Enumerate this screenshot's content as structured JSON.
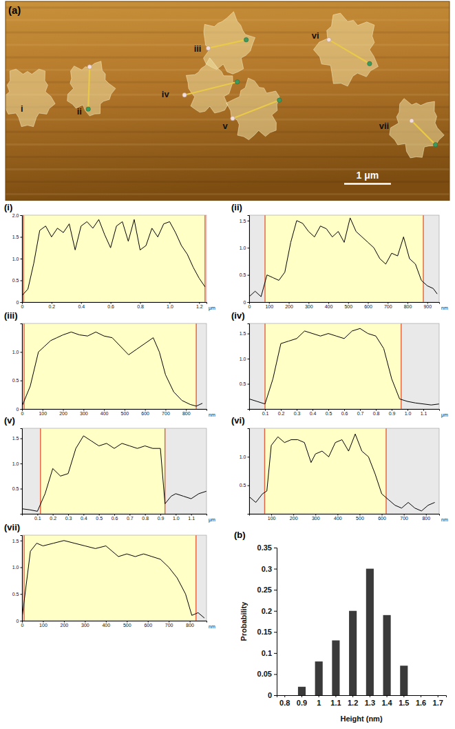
{
  "chart_data": [
    {
      "type": "image",
      "title": "(a)",
      "xlim": [
        0,
        9.5
      ],
      "ylim": [
        0,
        4.25
      ],
      "tick_labels": false,
      "annotations": [
        {
          "text": "i",
          "x": 0.35,
          "y": 2.3
        },
        {
          "text": "ii",
          "x": 1.58,
          "y": 2.36
        },
        {
          "text": "iii",
          "x": 4.11,
          "y": 1.03
        },
        {
          "text": "iv",
          "x": 3.42,
          "y": 2.0
        },
        {
          "text": "v",
          "x": 4.7,
          "y": 2.67
        },
        {
          "text": "vi",
          "x": 6.63,
          "y": 0.74
        },
        {
          "text": "vii",
          "x": 8.1,
          "y": 2.67
        }
      ],
      "profile_lines": [
        {
          "x": [
            1.8,
            1.77
          ],
          "y": [
            1.4,
            2.3
          ]
        },
        {
          "x": [
            4.34,
            5.15
          ],
          "y": [
            1.0,
            0.82
          ]
        },
        {
          "x": [
            3.83,
            4.96
          ],
          "y": [
            2.0,
            1.72
          ]
        },
        {
          "x": [
            4.86,
            5.86
          ],
          "y": [
            2.5,
            2.11
          ]
        },
        {
          "x": [
            6.92,
            7.79
          ],
          "y": [
            0.82,
            1.33
          ]
        },
        {
          "x": [
            8.69,
            9.2
          ],
          "y": [
            2.55,
            3.06
          ]
        }
      ],
      "flakes": [
        {
          "x": 0.47,
          "y": 2.03,
          "r": 0.5
        },
        {
          "x": 1.8,
          "y": 1.86,
          "r": 0.45
        },
        {
          "x": 4.74,
          "y": 0.93,
          "r": 0.5
        },
        {
          "x": 4.37,
          "y": 1.86,
          "r": 0.45
        },
        {
          "x": 5.33,
          "y": 2.33,
          "r": 0.5
        },
        {
          "x": 7.32,
          "y": 1.03,
          "r": 0.6
        },
        {
          "x": 8.79,
          "y": 2.7,
          "r": 0.5
        }
      ],
      "scale_bar": {
        "label": "1 μm",
        "length": 1
      }
    },
    {
      "type": "line",
      "title": "(i)",
      "xlabel": "μm",
      "color": "#000000",
      "x": [
        0,
        0.04,
        0.08,
        0.12,
        0.16,
        0.2,
        0.24,
        0.28,
        0.32,
        0.36,
        0.4,
        0.44,
        0.48,
        0.52,
        0.56,
        0.6,
        0.64,
        0.68,
        0.72,
        0.76,
        0.8,
        0.84,
        0.88,
        0.92,
        0.96,
        1.0,
        1.04,
        1.08,
        1.12,
        1.16,
        1.2,
        1.24
      ],
      "values": [
        0.15,
        0.3,
        0.9,
        1.65,
        1.75,
        1.5,
        1.7,
        1.6,
        1.8,
        1.2,
        1.75,
        1.85,
        1.7,
        1.9,
        1.55,
        1.25,
        1.75,
        1.85,
        1.4,
        1.9,
        1.2,
        1.3,
        1.7,
        1.5,
        1.8,
        1.85,
        1.6,
        1.3,
        1.1,
        0.8,
        0.55,
        0.35
      ],
      "cursors": [
        0.01,
        1.24
      ],
      "xlim": [
        0,
        1.25
      ],
      "xticks": [
        0,
        0.2,
        0.4,
        0.6,
        0.8,
        {
          "value": 1,
          "label": "1.0"
        },
        1.2
      ],
      "ylim": [
        0,
        2.0
      ],
      "yticks": [
        0,
        0.5,
        {
          "value": 1,
          "label": "1.0"
        },
        1.5,
        {
          "value": 2,
          "label": "2.0"
        }
      ]
    },
    {
      "type": "line",
      "title": "(ii)",
      "xlabel": "nm",
      "color": "#000000",
      "x": [
        0,
        30,
        60,
        90,
        120,
        150,
        180,
        210,
        240,
        270,
        300,
        330,
        360,
        390,
        420,
        450,
        480,
        510,
        540,
        570,
        600,
        630,
        660,
        690,
        720,
        750,
        780,
        810,
        840,
        870,
        900,
        930,
        950
      ],
      "values": [
        0.1,
        0.2,
        0.1,
        0.5,
        0.45,
        0.4,
        0.55,
        1.1,
        1.5,
        1.45,
        1.3,
        1.2,
        1.4,
        1.35,
        1.2,
        1.3,
        1.1,
        1.55,
        1.3,
        1.2,
        1.1,
        1.0,
        0.8,
        0.7,
        0.9,
        0.85,
        1.2,
        0.8,
        0.7,
        0.4,
        0.3,
        0.25,
        0.15
      ],
      "cursors": [
        80,
        880
      ],
      "xlim": [
        0,
        960
      ],
      "xticks": [
        0,
        100,
        200,
        300,
        400,
        500,
        600,
        700,
        800,
        900
      ],
      "ylim": [
        0,
        1.6
      ],
      "yticks": [
        0,
        0.5,
        {
          "value": 1,
          "label": "1.0"
        },
        1.5
      ]
    },
    {
      "type": "line",
      "title": "(iii)",
      "xlabel": "nm",
      "color": "#000000",
      "x": [
        0,
        40,
        80,
        110,
        140,
        170,
        200,
        240,
        280,
        320,
        360,
        400,
        440,
        480,
        520,
        560,
        600,
        640,
        670,
        700,
        740,
        780,
        820,
        850,
        880
      ],
      "values": [
        0.05,
        0.4,
        1.0,
        1.1,
        1.2,
        1.25,
        1.3,
        1.35,
        1.3,
        1.28,
        1.35,
        1.28,
        1.25,
        1.1,
        0.95,
        1.05,
        1.15,
        1.25,
        1.0,
        0.6,
        0.3,
        0.15,
        0.08,
        0.05,
        0.1
      ],
      "cursors": [
        10,
        850
      ],
      "xlim": [
        0,
        900
      ],
      "xticks": [
        0,
        100,
        200,
        300,
        400,
        500,
        600,
        700,
        800
      ],
      "ylim": [
        0,
        1.5
      ],
      "yticks": [
        0,
        0.5,
        {
          "value": 1,
          "label": "1.0"
        }
      ]
    },
    {
      "type": "line",
      "title": "(iv)",
      "xlabel": "μm",
      "color": "#000000",
      "x": [
        0,
        0.05,
        0.1,
        0.15,
        0.2,
        0.25,
        0.3,
        0.35,
        0.4,
        0.45,
        0.5,
        0.55,
        0.6,
        0.65,
        0.7,
        0.75,
        0.8,
        0.85,
        0.9,
        0.95,
        1.0,
        1.05,
        1.1,
        1.15,
        1.2
      ],
      "values": [
        0.2,
        0.15,
        0.1,
        0.6,
        1.3,
        1.35,
        1.4,
        1.55,
        1.5,
        1.45,
        1.5,
        1.45,
        1.4,
        1.55,
        1.6,
        1.5,
        1.45,
        1.2,
        0.6,
        0.2,
        0.15,
        0.12,
        0.1,
        0.08,
        0.1
      ],
      "cursors": [
        0.1,
        0.96
      ],
      "xlim": [
        0,
        1.2
      ],
      "xticks": [
        0.1,
        0.2,
        0.3,
        0.4,
        0.5,
        0.6,
        0.7,
        0.8,
        0.9,
        {
          "value": 1,
          "label": "1.0"
        },
        1.1
      ],
      "ylim": [
        0,
        1.7
      ],
      "yticks": [
        0.5,
        {
          "value": 1,
          "label": "1.0"
        },
        1.5
      ]
    },
    {
      "type": "line",
      "title": "(v)",
      "xlabel": "μm",
      "color": "#000000",
      "x": [
        0,
        0.05,
        0.1,
        0.15,
        0.2,
        0.25,
        0.3,
        0.35,
        0.4,
        0.45,
        0.5,
        0.55,
        0.6,
        0.65,
        0.7,
        0.75,
        0.8,
        0.85,
        0.9,
        0.93,
        0.97,
        1.0,
        1.05,
        1.1,
        1.15,
        1.2
      ],
      "values": [
        0.1,
        0.08,
        0.05,
        0.4,
        0.9,
        0.75,
        0.8,
        1.3,
        1.55,
        1.45,
        1.35,
        1.4,
        1.3,
        1.4,
        1.35,
        1.3,
        1.35,
        1.3,
        1.3,
        0.2,
        0.35,
        0.4,
        0.35,
        0.3,
        0.4,
        0.45
      ],
      "cursors": [
        0.12,
        0.93
      ],
      "xlim": [
        0,
        1.2
      ],
      "xticks": [
        0.1,
        0.2,
        0.3,
        0.4,
        0.5,
        0.6,
        0.7,
        0.8,
        0.9,
        {
          "value": 1,
          "label": "1.0"
        },
        1.1
      ],
      "ylim": [
        0,
        1.7
      ],
      "yticks": [
        0.5,
        {
          "value": 1,
          "label": "1.0"
        },
        1.5
      ]
    },
    {
      "type": "line",
      "title": "(vi)",
      "xlabel": "nm",
      "color": "#000000",
      "x": [
        0,
        30,
        60,
        80,
        100,
        130,
        160,
        190,
        220,
        250,
        280,
        300,
        330,
        360,
        390,
        420,
        450,
        480,
        510,
        540,
        570,
        600,
        630,
        660,
        690,
        720,
        750,
        780,
        810,
        840
      ],
      "values": [
        0.3,
        0.2,
        0.35,
        0.4,
        1.2,
        1.35,
        1.25,
        1.3,
        1.3,
        1.25,
        0.9,
        1.05,
        1.1,
        1.0,
        1.25,
        1.3,
        1.1,
        1.4,
        1.1,
        1.0,
        0.7,
        0.35,
        0.25,
        0.15,
        0.1,
        0.2,
        0.1,
        0.05,
        0.15,
        0.2
      ],
      "cursors": [
        70,
        620
      ],
      "xlim": [
        0,
        860
      ],
      "xticks": [
        100,
        200,
        300,
        400,
        500,
        600,
        700,
        800
      ],
      "ylim": [
        0,
        1.5
      ],
      "yticks": [
        0.5,
        {
          "value": 1,
          "label": "1.0"
        }
      ]
    },
    {
      "type": "line",
      "title": "(vii)",
      "xlabel": "nm",
      "color": "#000000",
      "x": [
        0,
        40,
        70,
        100,
        150,
        200,
        250,
        300,
        350,
        400,
        430,
        460,
        500,
        540,
        580,
        620,
        660,
        700,
        740,
        780,
        810,
        840,
        870
      ],
      "values": [
        0.05,
        1.3,
        1.45,
        1.4,
        1.45,
        1.5,
        1.45,
        1.4,
        1.35,
        1.4,
        1.3,
        1.2,
        1.25,
        1.2,
        1.25,
        1.2,
        1.15,
        1.0,
        0.8,
        0.5,
        0.1,
        0.15,
        0.05
      ],
      "cursors": [
        10,
        830
      ],
      "xlim": [
        0,
        880
      ],
      "xticks": [
        0,
        100,
        200,
        300,
        400,
        500,
        600,
        700,
        800
      ],
      "ylim": [
        0,
        1.6
      ],
      "yticks": [
        0,
        0.5,
        {
          "value": 1,
          "label": "1.0"
        },
        1.5
      ]
    },
    {
      "type": "bar",
      "title": "(b)",
      "xlabel": "Height (nm)",
      "ylabel": "Probability",
      "color": "#3a3a3a",
      "categories": [
        "0.8",
        "0.9",
        "1",
        "1.1",
        "1.2",
        "1.3",
        "1.4",
        "1.5",
        "1.6",
        "1.7"
      ],
      "values": [
        0,
        0.02,
        0.08,
        0.13,
        0.2,
        0.3,
        0.19,
        0.07,
        0,
        0
      ],
      "ylim": [
        0,
        0.35
      ],
      "yticks": [
        0,
        0.05,
        0.1,
        0.15,
        0.2,
        0.25,
        0.3,
        0.35
      ]
    }
  ]
}
